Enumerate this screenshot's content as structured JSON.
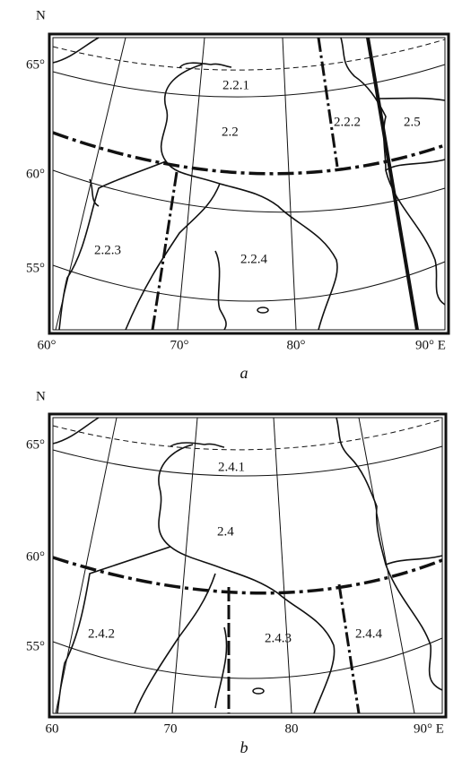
{
  "panels": [
    {
      "north_label": "N",
      "lat_labels": [
        "65°",
        "60°",
        "55°"
      ],
      "lon_labels": [
        "60°",
        "70°",
        "80°",
        "90° E"
      ],
      "regions": [
        "2.2.1",
        "2.2",
        "2.2.2",
        "2.5",
        "2.2.3",
        "2.2.4"
      ],
      "caption": "a"
    },
    {
      "north_label": "N",
      "lat_labels": [
        "65°",
        "60°",
        "55°"
      ],
      "lon_labels": [
        "60",
        "70",
        "80",
        "90° E"
      ],
      "regions": [
        "2.4.1",
        "2.4",
        "2.4.2",
        "2.4.3",
        "2.4.4"
      ],
      "caption": "b"
    }
  ]
}
